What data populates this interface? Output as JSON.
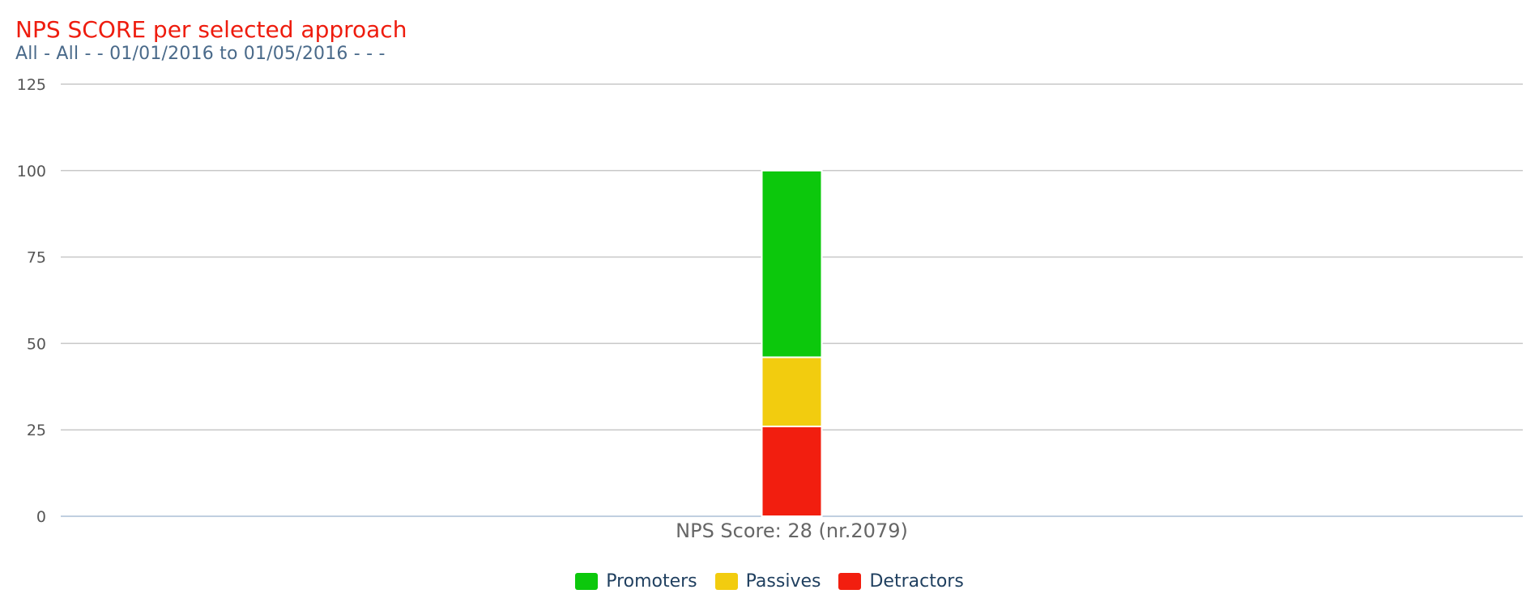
{
  "header": {
    "title": "NPS SCORE per selected approach",
    "subtitle": "All - All - - 01/01/2016 to 01/05/2016 - - -"
  },
  "chart_data": {
    "type": "bar",
    "stacked": true,
    "title": "NPS SCORE per selected approach",
    "subtitle": "All - All - - 01/01/2016 to 01/05/2016 - - -",
    "categories": [
      "NPS Score: 28 (nr.2079)"
    ],
    "series": [
      {
        "name": "Promoters",
        "values": [
          54
        ],
        "color": "#0cc80c"
      },
      {
        "name": "Passives",
        "values": [
          20
        ],
        "color": "#f2cc0f"
      },
      {
        "name": "Detractors",
        "values": [
          26
        ],
        "color": "#f21e0f"
      }
    ],
    "stack_order_bottom_to_top": [
      "Detractors",
      "Passives",
      "Promoters"
    ],
    "ylim": [
      0,
      125
    ],
    "yticks": [
      0,
      25,
      50,
      75,
      100,
      125
    ],
    "grid": true,
    "legend_position": "bottom-center"
  }
}
